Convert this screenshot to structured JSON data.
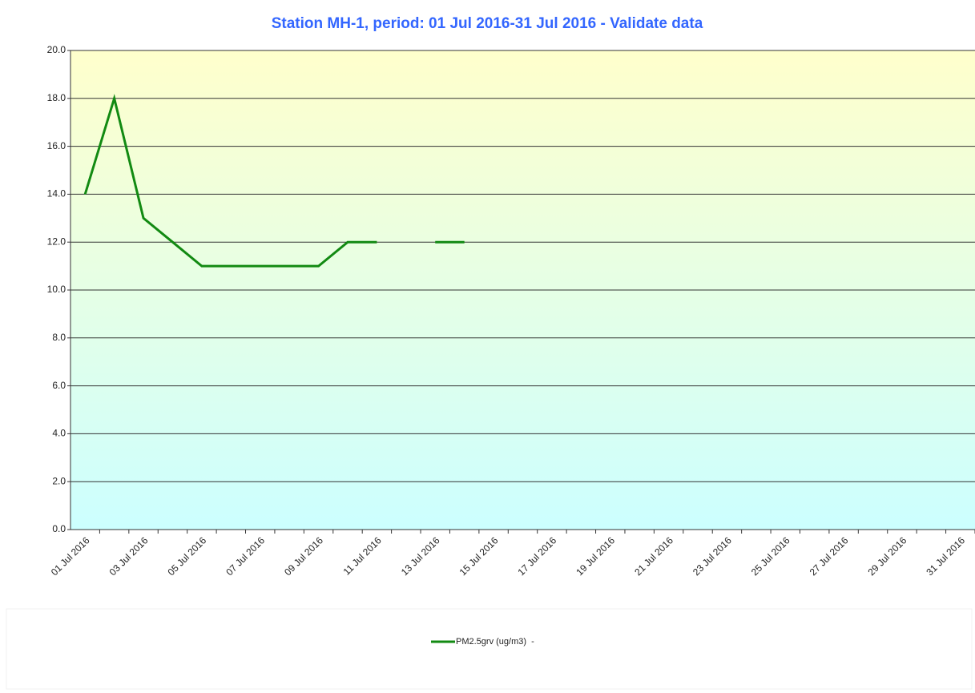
{
  "chart_data": {
    "type": "line",
    "title": "Station MH-1, period: 01 Jul 2016-31 Jul 2016 - Validate data",
    "categories": [
      "01 Jul 2016",
      null,
      "03 Jul 2016",
      null,
      "05 Jul 2016",
      null,
      "07 Jul 2016",
      null,
      "09 Jul 2016",
      null,
      "11 Jul 2016",
      null,
      "13 Jul 2016",
      null,
      "15 Jul 2016",
      null,
      "17 Jul 2016",
      null,
      "19 Jul 2016",
      null,
      "21 Jul 2016",
      null,
      "23 Jul 2016",
      null,
      "25 Jul 2016",
      null,
      "27 Jul 2016",
      null,
      "29 Jul 2016",
      null,
      "31 Jul 2016"
    ],
    "series": [
      {
        "name": "PM2.5grv (ug/m3)  -",
        "color": "#128a12",
        "values": [
          14,
          18,
          13,
          12,
          11,
          11,
          11,
          11,
          11,
          12,
          12,
          null,
          12,
          12,
          null,
          null,
          null,
          null,
          null,
          null,
          null,
          null,
          null,
          null,
          null,
          null,
          null,
          null,
          null,
          null,
          null
        ]
      }
    ],
    "ylim": [
      0,
      20
    ],
    "yticks": [
      {
        "value": 0,
        "label": "0.0"
      },
      {
        "value": 2,
        "label": "2.0"
      },
      {
        "value": 4,
        "label": "4.0"
      },
      {
        "value": 6,
        "label": "6.0"
      },
      {
        "value": 8,
        "label": "8.0"
      },
      {
        "value": 10,
        "label": "10.0"
      },
      {
        "value": 12,
        "label": "12.0"
      },
      {
        "value": 14,
        "label": "14.0"
      },
      {
        "value": 16,
        "label": "16.0"
      },
      {
        "value": 18,
        "label": "18.0"
      },
      {
        "value": 20,
        "label": "20.0"
      }
    ],
    "grid": true
  }
}
